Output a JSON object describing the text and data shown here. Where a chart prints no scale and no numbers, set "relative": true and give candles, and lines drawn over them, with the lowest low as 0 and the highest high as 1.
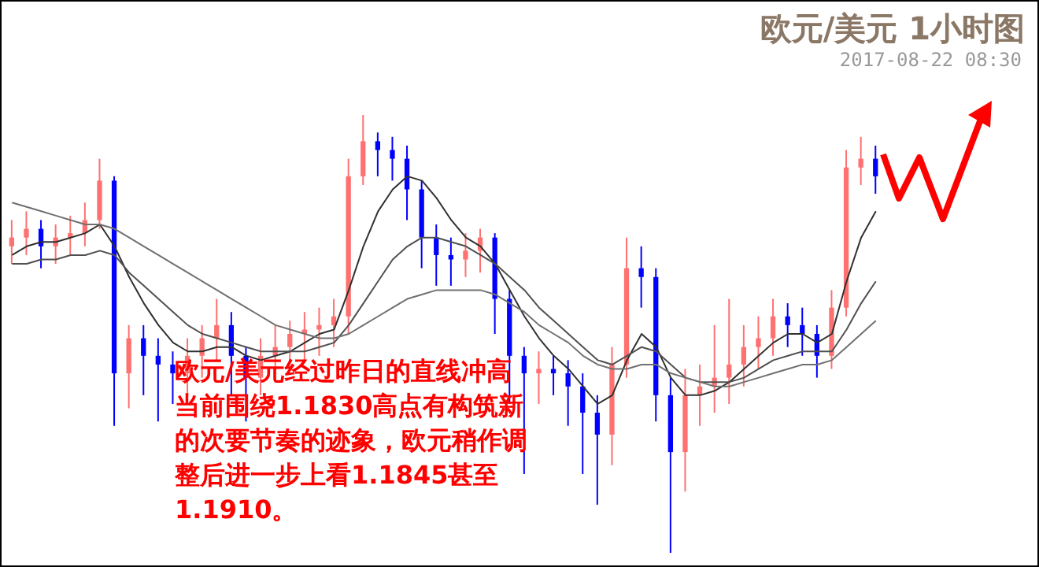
{
  "chart_data": {
    "type": "candlestick",
    "title": "欧元/美元 1小时图",
    "subtitle": "2017-08-22 08:30",
    "relative": true,
    "tick_labels": false,
    "marker": "none",
    "annotations": [
      "欧元/美元经过昨日的直线冲高当前围绕1.1830高点有构筑新的次要节奏的迹象，欧元稍作调整后进一步上看1.1845甚至1.1910。"
    ],
    "categories": [
      null,
      null,
      null,
      null,
      null,
      null,
      null,
      null,
      null,
      null,
      null,
      null,
      null,
      null,
      null,
      null,
      null,
      null,
      null,
      null,
      null,
      null,
      null,
      null,
      null,
      null,
      null,
      null,
      null,
      null,
      null,
      null,
      null,
      null,
      null,
      null,
      null,
      null,
      null,
      null,
      null,
      null,
      null,
      null,
      null,
      null,
      null,
      null,
      null,
      null,
      null,
      null,
      null,
      null,
      null,
      null,
      null,
      null,
      null,
      null
    ],
    "ohlc": [
      [
        0.7,
        0.76,
        0.66,
        0.72
      ],
      [
        0.72,
        0.78,
        0.68,
        0.74
      ],
      [
        0.74,
        0.76,
        0.65,
        0.7
      ],
      [
        0.7,
        0.75,
        0.66,
        0.72
      ],
      [
        0.72,
        0.77,
        0.68,
        0.73
      ],
      [
        0.73,
        0.8,
        0.7,
        0.76
      ],
      [
        0.76,
        0.9,
        0.74,
        0.85
      ],
      [
        0.85,
        0.86,
        0.29,
        0.41
      ],
      [
        0.41,
        0.52,
        0.33,
        0.49
      ],
      [
        0.49,
        0.52,
        0.36,
        0.45
      ],
      [
        0.45,
        0.49,
        0.3,
        0.43
      ],
      [
        0.43,
        0.46,
        0.34,
        0.41
      ],
      [
        0.41,
        0.49,
        0.36,
        0.45
      ],
      [
        0.45,
        0.52,
        0.4,
        0.49
      ],
      [
        0.49,
        0.58,
        0.44,
        0.52
      ],
      [
        0.52,
        0.55,
        0.36,
        0.45
      ],
      [
        0.45,
        0.47,
        0.3,
        0.4
      ],
      [
        0.4,
        0.49,
        0.36,
        0.45
      ],
      [
        0.45,
        0.52,
        0.41,
        0.47
      ],
      [
        0.47,
        0.53,
        0.42,
        0.5
      ],
      [
        0.5,
        0.55,
        0.44,
        0.51
      ],
      [
        0.51,
        0.56,
        0.45,
        0.52
      ],
      [
        0.52,
        0.58,
        0.47,
        0.54
      ],
      [
        0.54,
        0.9,
        0.5,
        0.86
      ],
      [
        0.86,
        1.0,
        0.84,
        0.94
      ],
      [
        0.94,
        0.96,
        0.86,
        0.92
      ],
      [
        0.92,
        0.95,
        0.85,
        0.9
      ],
      [
        0.9,
        0.93,
        0.76,
        0.83
      ],
      [
        0.83,
        0.85,
        0.65,
        0.72
      ],
      [
        0.72,
        0.75,
        0.61,
        0.68
      ],
      [
        0.68,
        0.72,
        0.61,
        0.67
      ],
      [
        0.67,
        0.73,
        0.63,
        0.69
      ],
      [
        0.69,
        0.74,
        0.64,
        0.72
      ],
      [
        0.72,
        0.73,
        0.5,
        0.58
      ],
      [
        0.58,
        0.6,
        0.34,
        0.45
      ],
      [
        0.45,
        0.47,
        0.18,
        0.41
      ],
      [
        0.41,
        0.46,
        0.34,
        0.42
      ],
      [
        0.42,
        0.45,
        0.36,
        0.41
      ],
      [
        0.41,
        0.44,
        0.29,
        0.38
      ],
      [
        0.38,
        0.41,
        0.18,
        0.32
      ],
      [
        0.32,
        0.36,
        0.11,
        0.27
      ],
      [
        0.27,
        0.47,
        0.2,
        0.43
      ],
      [
        0.43,
        0.72,
        0.4,
        0.65
      ],
      [
        0.65,
        0.7,
        0.56,
        0.63
      ],
      [
        0.63,
        0.65,
        0.3,
        0.36
      ],
      [
        0.36,
        0.4,
        0,
        0.23
      ],
      [
        0.23,
        0.42,
        0.14,
        0.36
      ],
      [
        0.36,
        0.43,
        0.29,
        0.38
      ],
      [
        0.38,
        0.52,
        0.32,
        0.4
      ],
      [
        0.4,
        0.58,
        0.34,
        0.43
      ],
      [
        0.43,
        0.52,
        0.38,
        0.47
      ],
      [
        0.47,
        0.54,
        0.42,
        0.49
      ],
      [
        0.49,
        0.58,
        0.45,
        0.54
      ],
      [
        0.54,
        0.57,
        0.47,
        0.52
      ],
      [
        0.52,
        0.56,
        0.45,
        0.5
      ],
      [
        0.5,
        0.52,
        0.4,
        0.45
      ],
      [
        0.45,
        0.6,
        0.42,
        0.56
      ],
      [
        0.56,
        0.92,
        0.54,
        0.88
      ],
      [
        0.88,
        0.95,
        0.84,
        0.9
      ],
      [
        0.9,
        0.93,
        0.82,
        0.86
      ]
    ],
    "colors": [
      "#ff7070",
      "#ff7070",
      "#0000ff",
      "#ff7070",
      "#ff7070",
      "#ff7070",
      "#ff7070",
      "#0000ff",
      "#ff7070",
      "#0000ff",
      "#0000ff",
      "#0000ff",
      "#ff7070",
      "#ff7070",
      "#ff7070",
      "#0000ff",
      "#0000ff",
      "#ff7070",
      "#ff7070",
      "#ff7070",
      "#ff7070",
      "#ff7070",
      "#ff7070",
      "#ff7070",
      "#ff7070",
      "#0000ff",
      "#0000ff",
      "#0000ff",
      "#0000ff",
      "#0000ff",
      "#0000ff",
      "#ff7070",
      "#ff7070",
      "#0000ff",
      "#0000ff",
      "#0000ff",
      "#ff7070",
      "#0000ff",
      "#0000ff",
      "#0000ff",
      "#0000ff",
      "#ff7070",
      "#ff7070",
      "#0000ff",
      "#0000ff",
      "#0000ff",
      "#ff7070",
      "#ff7070",
      "#ff7070",
      "#ff7070",
      "#ff7070",
      "#ff7070",
      "#ff7070",
      "#0000ff",
      "#0000ff",
      "#0000ff",
      "#ff7070",
      "#ff7070",
      "#ff7070",
      "#0000ff"
    ],
    "series": [
      {
        "type": "line",
        "color": "#303030",
        "values": [
          0.68,
          0.7,
          0.71,
          0.71,
          0.72,
          0.73,
          0.75,
          0.7,
          0.63,
          0.57,
          0.52,
          0.48,
          0.46,
          0.46,
          0.47,
          0.47,
          0.45,
          0.44,
          0.45,
          0.46,
          0.48,
          0.5,
          0.51,
          0.6,
          0.7,
          0.78,
          0.83,
          0.86,
          0.85,
          0.81,
          0.76,
          0.72,
          0.7,
          0.66,
          0.6,
          0.54,
          0.49,
          0.45,
          0.42,
          0.38,
          0.34,
          0.36,
          0.44,
          0.5,
          0.47,
          0.4,
          0.36,
          0.36,
          0.37,
          0.39,
          0.42,
          0.45,
          0.48,
          0.5,
          0.5,
          0.48,
          0.5,
          0.62,
          0.72,
          0.78
        ]
      },
      {
        "type": "line",
        "color": "#505050",
        "values": [
          0.66,
          0.66,
          0.67,
          0.67,
          0.68,
          0.68,
          0.69,
          0.68,
          0.64,
          0.61,
          0.58,
          0.55,
          0.52,
          0.5,
          0.49,
          0.48,
          0.47,
          0.46,
          0.46,
          0.46,
          0.46,
          0.47,
          0.48,
          0.52,
          0.57,
          0.62,
          0.67,
          0.7,
          0.72,
          0.72,
          0.71,
          0.7,
          0.68,
          0.66,
          0.63,
          0.6,
          0.56,
          0.53,
          0.5,
          0.47,
          0.44,
          0.43,
          0.45,
          0.47,
          0.46,
          0.43,
          0.4,
          0.39,
          0.39,
          0.39,
          0.4,
          0.42,
          0.44,
          0.45,
          0.46,
          0.46,
          0.46,
          0.51,
          0.57,
          0.62
        ]
      },
      {
        "type": "line",
        "color": "#707070",
        "values": [
          0.8,
          0.79,
          0.78,
          0.77,
          0.76,
          0.75,
          0.75,
          0.74,
          0.72,
          0.7,
          0.68,
          0.66,
          0.64,
          0.62,
          0.6,
          0.58,
          0.56,
          0.54,
          0.52,
          0.51,
          0.5,
          0.49,
          0.49,
          0.5,
          0.52,
          0.54,
          0.56,
          0.58,
          0.59,
          0.6,
          0.6,
          0.6,
          0.6,
          0.59,
          0.57,
          0.55,
          0.52,
          0.5,
          0.48,
          0.45,
          0.43,
          0.42,
          0.42,
          0.43,
          0.43,
          0.41,
          0.4,
          0.39,
          0.38,
          0.38,
          0.39,
          0.4,
          0.41,
          0.42,
          0.43,
          0.43,
          0.44,
          0.47,
          0.5,
          0.53
        ]
      }
    ]
  }
}
